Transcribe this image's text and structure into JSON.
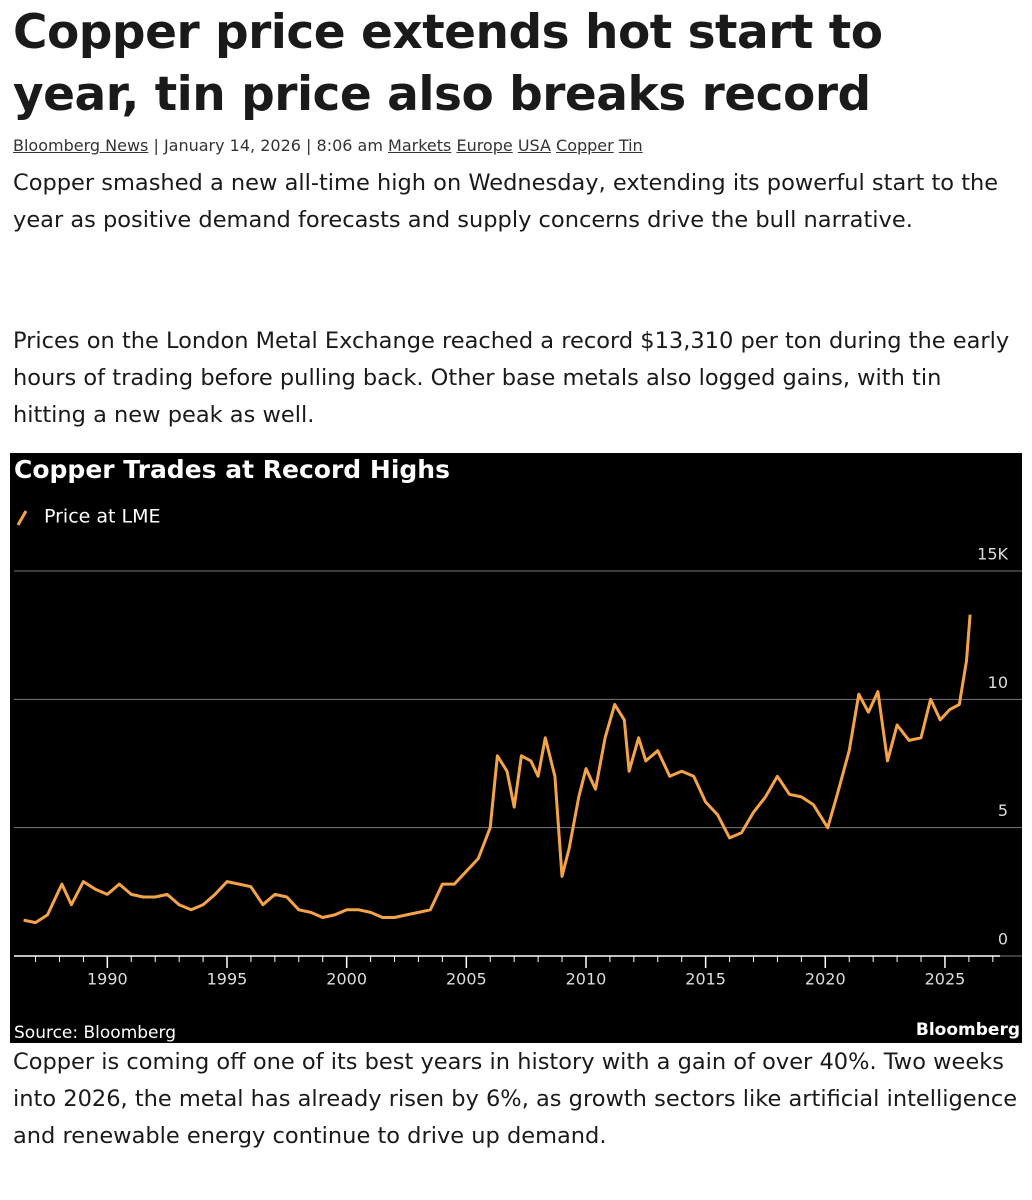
{
  "article": {
    "title": "Copper price extends hot start to year, tin price also breaks record",
    "byline": {
      "author": "Bloomberg News",
      "separator": "|",
      "date": "January 14, 2026",
      "time": "8:06 am",
      "tags": [
        "Markets",
        "Europe",
        "USA",
        "Copper",
        "Tin"
      ]
    },
    "paragraphs": [
      "Copper smashed a new all-time high on Wednesday, extending its powerful start to the year as positive demand forecasts and supply concerns drive the bull narrative.",
      "Prices on the London Metal Exchange reached a record $13,310 per ton during the early hours of trading before pulling back. Other base metals also logged gains, with tin hitting a new peak as well.",
      "Copper is coming off one of its best years in history with a gain of over 40%. Two weeks into 2026, the metal has already risen by 6%, as growth sectors like artificial intelligence and renewable energy continue to drive up demand."
    ]
  },
  "chart_data": {
    "type": "line",
    "title": "Copper Trades at Record Highs",
    "source": "Source: Bloomberg",
    "brand": "Bloomberg",
    "x": [
      1986.5,
      1987,
      1987.5,
      1988.1,
      1988.5,
      1989,
      1989.5,
      1990,
      1990.5,
      1991,
      1991.5,
      1992,
      1992.5,
      1993,
      1993.5,
      1994,
      1994.5,
      1995,
      1995.5,
      1996,
      1996.5,
      1997,
      1997.5,
      1998,
      1998.5,
      1999,
      1999.5,
      2000,
      2000.5,
      2001,
      2001.5,
      2002,
      2002.5,
      2003,
      2003.5,
      2004,
      2004.5,
      2005,
      2005.5,
      2006,
      2006.3,
      2006.7,
      2007,
      2007.3,
      2007.7,
      2008,
      2008.3,
      2008.7,
      2009,
      2009.3,
      2009.7,
      2010,
      2010.4,
      2010.8,
      2011.2,
      2011.6,
      2011.8,
      2012.2,
      2012.5,
      2013,
      2013.5,
      2014,
      2014.5,
      2015,
      2015.5,
      2016,
      2016.5,
      2017,
      2017.5,
      2018,
      2018.5,
      2019,
      2019.5,
      2020.1,
      2020.5,
      2021,
      2021.4,
      2021.8,
      2022.2,
      2022.6,
      2023,
      2023.5,
      2024,
      2024.4,
      2024.8,
      2025.2,
      2025.6,
      2025.9,
      2026.05
    ],
    "series": [
      {
        "name": "Price at LME",
        "color": "#f4a347",
        "values": [
          1.4,
          1.3,
          1.6,
          2.8,
          2.0,
          2.9,
          2.6,
          2.4,
          2.8,
          2.4,
          2.3,
          2.3,
          2.4,
          2.0,
          1.8,
          2.0,
          2.4,
          2.9,
          2.8,
          2.7,
          2.0,
          2.4,
          2.3,
          1.8,
          1.7,
          1.5,
          1.6,
          1.8,
          1.8,
          1.7,
          1.5,
          1.5,
          1.6,
          1.7,
          1.8,
          2.8,
          2.8,
          3.3,
          3.8,
          5.0,
          7.8,
          7.2,
          5.8,
          7.8,
          7.6,
          7.0,
          8.5,
          7.0,
          3.1,
          4.2,
          6.2,
          7.3,
          6.5,
          8.5,
          9.8,
          9.2,
          7.2,
          8.5,
          7.6,
          8.0,
          7.0,
          7.2,
          7.0,
          6.0,
          5.5,
          4.6,
          4.8,
          5.6,
          6.2,
          7.0,
          6.3,
          6.2,
          5.9,
          5.0,
          6.3,
          8.0,
          10.2,
          9.5,
          10.3,
          7.6,
          9.0,
          8.4,
          8.5,
          10.0,
          9.2,
          9.6,
          9.8,
          11.5,
          13.3
        ]
      }
    ],
    "xlim": [
      1986.1,
      2027.3
    ],
    "xticks": [
      1990,
      1995,
      2000,
      2005,
      2010,
      2015,
      2020,
      2025
    ],
    "ylim": [
      0,
      15
    ],
    "yticks": [
      0,
      5,
      10,
      {
        "value": 15,
        "label": "15K"
      }
    ],
    "grid": true
  }
}
